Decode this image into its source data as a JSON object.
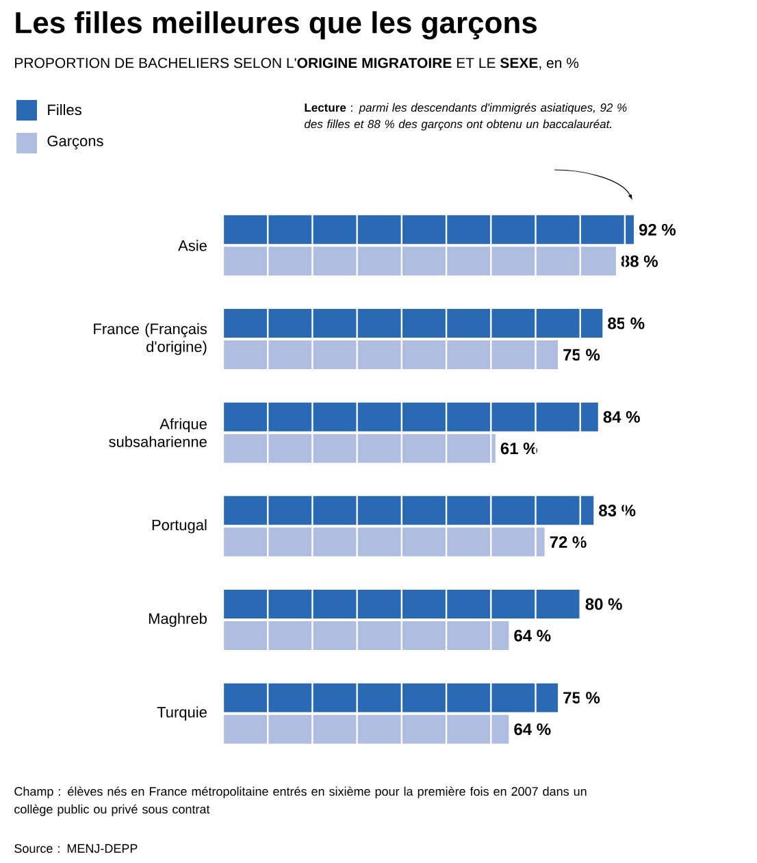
{
  "chart_data": {
    "type": "bar",
    "orientation": "horizontal",
    "title": "Les filles meilleures que les garçons",
    "subtitle": "PROPORTION DE BACHELIERS SELON L'**ORIGINE MIGRATOIRE** ET LE **SEXE**, en %",
    "categories": [
      "Asie",
      "France (Français d'origine)",
      "Afrique subsaharienne",
      "Portugal",
      "Maghreb",
      "Turquie"
    ],
    "series": [
      {
        "name": "Filles",
        "color": "#2a6ab4",
        "values": [
          92,
          85,
          84,
          83,
          80,
          75
        ],
        "value_labels": [
          "92 %",
          "85 %",
          "84 %",
          "83 %",
          "80 %",
          "75 %"
        ]
      },
      {
        "name": "Garçons",
        "color": "#aebde0",
        "values": [
          88,
          75,
          61,
          72,
          64,
          64
        ],
        "value_labels": [
          "88 %",
          "75 %",
          "61 %",
          "72 %",
          "64 %",
          "64 %"
        ]
      }
    ],
    "grid": "x",
    "tick_labels": "y",
    "legend": "top left",
    "annotations": [
      "**Lecture** : *parmi les descendants d'immigrés asiatiques, 92 % des filles et 88 % des garçons ont obtenu un baccalauréat.*",
      "Champ : élèves nés en France métropolitaine entrés en sixième pour la première fois en 2007 dans un collège public ou privé sous contrat",
      "Source : MENJ-DEPP"
    ]
  }
}
